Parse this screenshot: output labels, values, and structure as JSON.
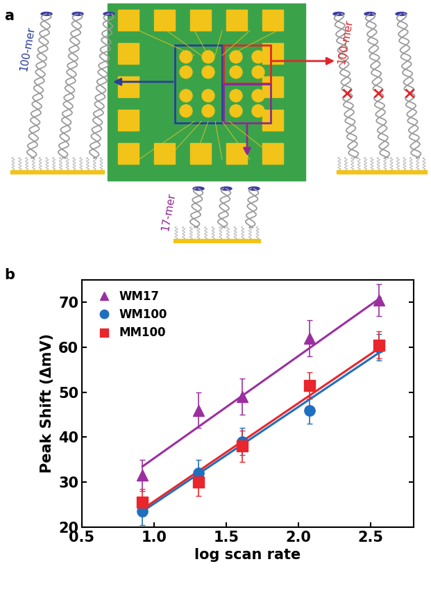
{
  "panels": [
    "a",
    "b"
  ],
  "diagram": {
    "strand_groups": [
      {
        "label": "100-mer",
        "color": "#2b3d9b",
        "mismatch": false
      },
      {
        "label": "100-mer",
        "color": "#e0262b",
        "mismatch": true
      },
      {
        "label": "17-mer",
        "color": "#8e2a91",
        "mismatch": false
      }
    ]
  },
  "chart_data": {
    "type": "scatter",
    "x_label": "log scan rate",
    "y_label": "Peak Shift (ΔmV)",
    "xlim": [
      0.5,
      2.8
    ],
    "xticks": [
      0.5,
      {
        "value": 1.0,
        "label": "1.0"
      },
      1.5,
      {
        "value": 2.0,
        "label": "2.0"
      },
      2.5
    ],
    "ylim": [
      20,
      75
    ],
    "yticks": [
      20,
      30,
      40,
      50,
      60,
      70
    ],
    "legend": "upper left",
    "series": [
      {
        "name": "WM17",
        "color": "#9b2fa0",
        "marker": "^",
        "x": [
          0.92,
          1.31,
          1.61,
          2.08,
          2.56
        ],
        "values": [
          31.5,
          46,
          49,
          62,
          70.5
        ],
        "errors": [
          3.5,
          4,
          4,
          4,
          3.5
        ],
        "fit": {
          "x": [
            0.92,
            2.57
          ],
          "values": [
            33.5,
            71
          ]
        }
      },
      {
        "name": "WM100",
        "color": "#1f6fc0",
        "marker": "o",
        "x": [
          0.92,
          1.31,
          1.61,
          2.08,
          2.56
        ],
        "values": [
          23.5,
          32,
          39,
          46,
          60
        ],
        "errors": [
          3,
          3,
          3,
          3,
          3
        ],
        "fit": {
          "x": [
            0.92,
            2.57
          ],
          "values": [
            23.5,
            59
          ]
        }
      },
      {
        "name": "MM100",
        "color": "#e8262b",
        "marker": "s",
        "x": [
          0.92,
          1.31,
          1.61,
          2.08,
          2.56
        ],
        "values": [
          25.5,
          30,
          38,
          51.5,
          60.5
        ],
        "errors": [
          3,
          3,
          3.5,
          3,
          3
        ],
        "fit": {
          "x": [
            0.92,
            2.57
          ],
          "values": [
            24,
            60
          ]
        }
      }
    ]
  }
}
